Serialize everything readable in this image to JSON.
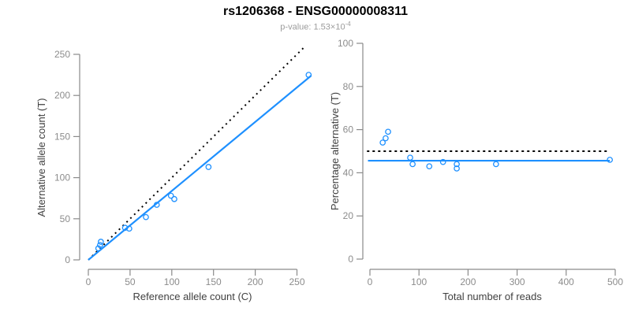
{
  "header": {
    "title": "rs1206368 - ENSG00000008311",
    "subtitle_label": "p-value: 1.53×10",
    "subtitle_exponent": "-4"
  },
  "colors": {
    "accent_blue": "#1E90FF",
    "identity_black": "#000000",
    "axis_line": "#8a8a8a",
    "tick_label": "#8c8c8c",
    "axis_title": "#404040",
    "subtitle_gray": "#9c9c9c",
    "background": "#ffffff"
  },
  "chart_data": [
    {
      "id": "allele-counts",
      "type": "scatter",
      "title": "",
      "xlabel": "Reference allele count (C)",
      "ylabel": "Alternative allele count (T)",
      "xlim": [
        0,
        267
      ],
      "ylim": [
        0,
        265
      ],
      "xticks": [
        0,
        50,
        100,
        150,
        200,
        250
      ],
      "yticks": [
        0,
        50,
        100,
        150,
        200,
        250
      ],
      "grid": false,
      "legend": "none",
      "points": [
        [
          12,
          14
        ],
        [
          14,
          18
        ],
        [
          15,
          22
        ],
        [
          44,
          39
        ],
        [
          49,
          38
        ],
        [
          69,
          52
        ],
        [
          82,
          67
        ],
        [
          99,
          78
        ],
        [
          103,
          74
        ],
        [
          144,
          113
        ],
        [
          264,
          225
        ]
      ],
      "lines": [
        {
          "name": "expected-1-to-1-line",
          "x1": 0,
          "y1": 0,
          "x2": 258,
          "y2": 258,
          "style": "dotted",
          "color": "black"
        },
        {
          "name": "fitted-allelic-ratio-line",
          "x1": 0,
          "y1": 0,
          "x2": 267,
          "y2": 224,
          "style": "solid",
          "color": "blue"
        }
      ]
    },
    {
      "id": "percentage-vs-reads",
      "type": "scatter",
      "title": "",
      "xlabel": "Total number of reads",
      "ylabel": "Percentage alternative (T)",
      "xlim": [
        0,
        500
      ],
      "ylim": [
        0,
        100
      ],
      "xticks": [
        0,
        100,
        200,
        300,
        400,
        500
      ],
      "yticks": [
        0,
        20,
        40,
        60,
        80,
        100
      ],
      "grid": false,
      "legend": "none",
      "points": [
        [
          26,
          54
        ],
        [
          32,
          56
        ],
        [
          37,
          59
        ],
        [
          82,
          47
        ],
        [
          87,
          44
        ],
        [
          121,
          43
        ],
        [
          149,
          45
        ],
        [
          177,
          44
        ],
        [
          177,
          42
        ],
        [
          257,
          44
        ],
        [
          489,
          46
        ]
      ],
      "lines": [
        {
          "name": "expected-50-percent-line",
          "x1": -6,
          "y1": 50,
          "x2": 484,
          "y2": 50,
          "style": "dotted",
          "color": "black"
        },
        {
          "name": "fitted-mean-percentage-line",
          "x1": -4,
          "y1": 45.6,
          "x2": 489,
          "y2": 45.6,
          "style": "solid",
          "color": "blue"
        }
      ]
    }
  ]
}
